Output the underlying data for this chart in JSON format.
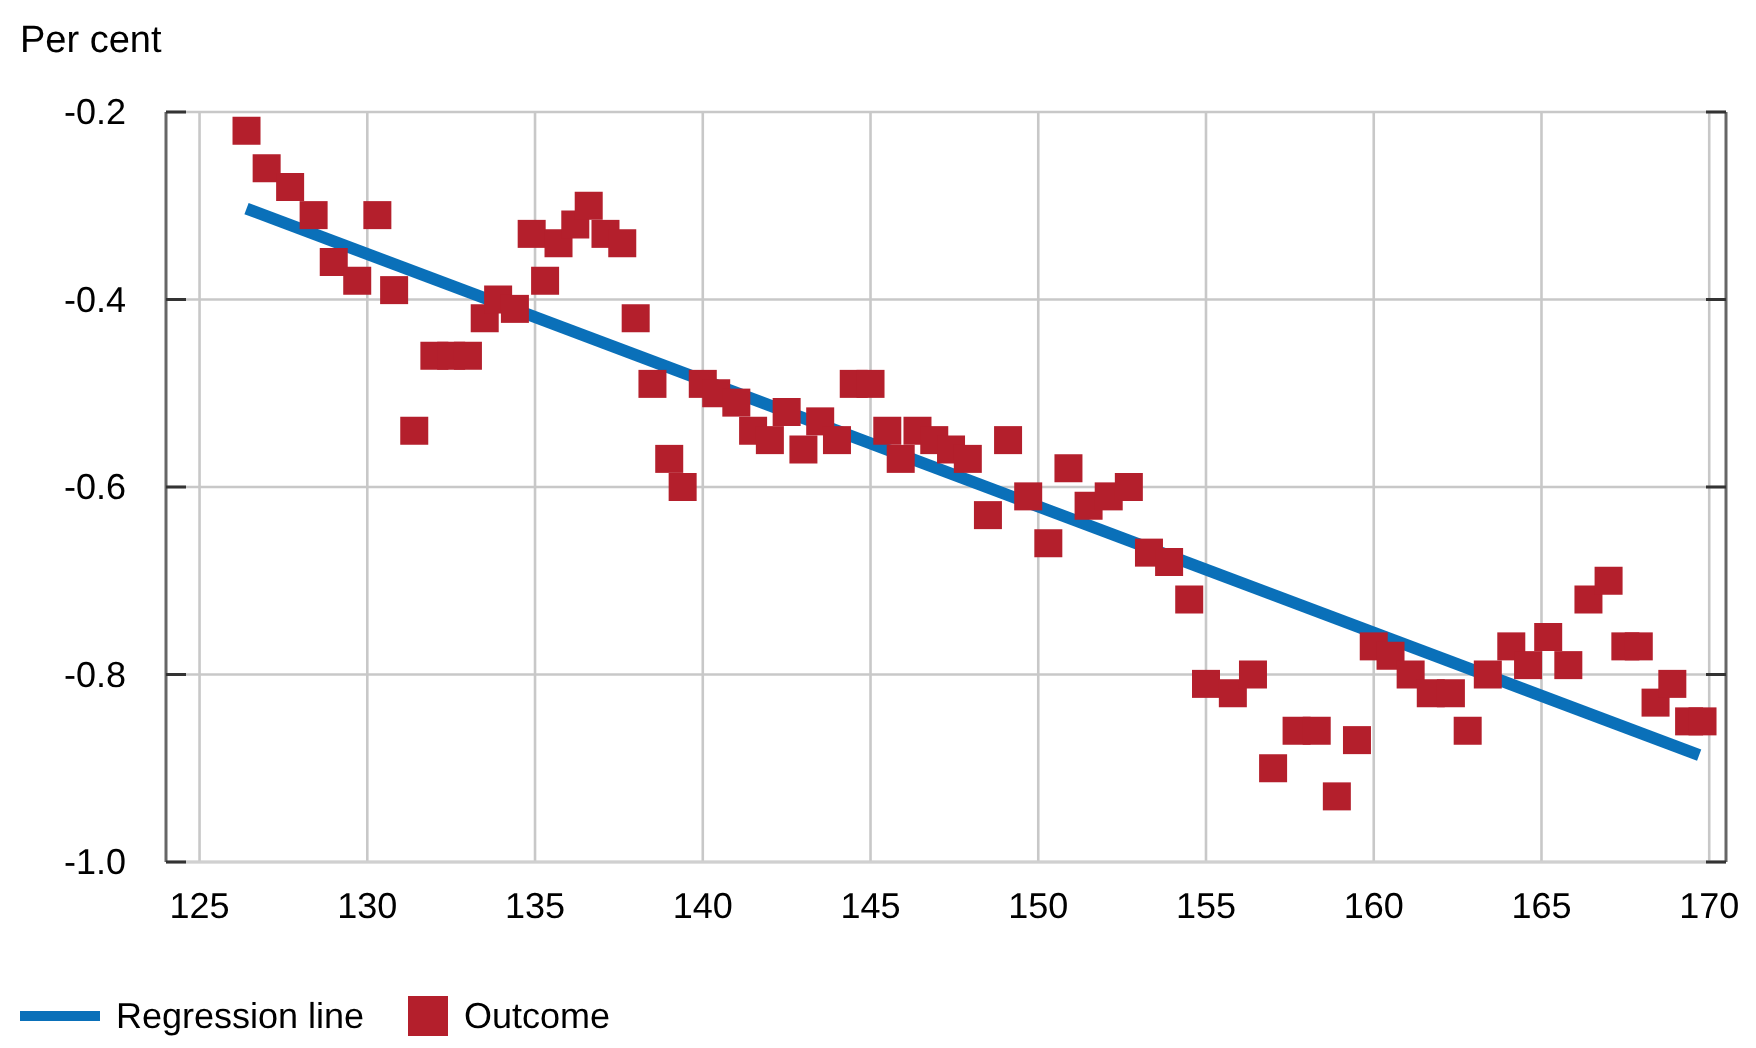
{
  "chart_data": {
    "type": "scatter",
    "ylabel": "Per cent",
    "xlim": [
      124,
      170.5
    ],
    "xticks": [
      125,
      130,
      135,
      140,
      145,
      150,
      155,
      160,
      165,
      170
    ],
    "ylim": [
      -1.0,
      -0.2
    ],
    "yticks": [
      -0.2,
      -0.4,
      -0.6,
      -0.8,
      {
        "value": -1.0,
        "label": "-1.0"
      }
    ],
    "grid": true,
    "legend": "bottom left",
    "series": [
      {
        "name": "Regression line",
        "type": "line",
        "color": "#0a70b9",
        "marker": "none",
        "x": [
          126.4,
          169.7
        ],
        "values": [
          -0.303,
          -0.886
        ]
      },
      {
        "name": "Outcome",
        "color": "#b41f2c",
        "marker": "square",
        "x": [
          126.4,
          127.0,
          127.7,
          128.4,
          129.0,
          129.7,
          130.3,
          130.8,
          131.4,
          132.0,
          132.5,
          133.0,
          133.5,
          133.9,
          134.4,
          134.9,
          135.3,
          135.7,
          136.2,
          136.6,
          137.1,
          137.6,
          138.0,
          138.5,
          139.0,
          139.4,
          140.0,
          140.4,
          141.0,
          141.5,
          142.0,
          142.5,
          143.0,
          143.5,
          144.0,
          144.5,
          145.0,
          145.5,
          145.9,
          146.4,
          146.9,
          147.4,
          147.9,
          148.5,
          149.1,
          149.7,
          150.3,
          150.9,
          151.5,
          152.1,
          152.7,
          153.3,
          153.9,
          154.5,
          155.0,
          155.8,
          156.4,
          157.0,
          157.7,
          158.3,
          158.9,
          159.5,
          160.0,
          160.5,
          161.1,
          161.7,
          162.3,
          162.8,
          163.4,
          164.1,
          164.6,
          165.2,
          165.8,
          166.4,
          167.0,
          167.5,
          167.9,
          168.4,
          168.9,
          169.4,
          169.8
        ],
        "values": [
          -0.22,
          -0.26,
          -0.28,
          -0.31,
          -0.36,
          -0.38,
          -0.31,
          -0.39,
          -0.54,
          -0.46,
          -0.46,
          -0.46,
          -0.42,
          -0.4,
          -0.41,
          -0.33,
          -0.38,
          -0.34,
          -0.32,
          -0.3,
          -0.33,
          -0.34,
          -0.42,
          -0.49,
          -0.57,
          -0.6,
          -0.49,
          -0.5,
          -0.51,
          -0.54,
          -0.55,
          -0.52,
          -0.56,
          -0.53,
          -0.55,
          -0.49,
          -0.49,
          -0.54,
          -0.57,
          -0.54,
          -0.55,
          -0.56,
          -0.57,
          -0.63,
          -0.55,
          -0.61,
          -0.66,
          -0.58,
          -0.62,
          -0.61,
          -0.6,
          -0.67,
          -0.68,
          -0.72,
          -0.81,
          -0.82,
          -0.8,
          -0.9,
          -0.86,
          -0.86,
          -0.93,
          -0.87,
          -0.77,
          -0.78,
          -0.8,
          -0.82,
          -0.82,
          -0.86,
          -0.8,
          -0.77,
          -0.79,
          -0.76,
          -0.79,
          -0.72,
          -0.7,
          -0.77,
          -0.77,
          -0.83,
          -0.81,
          -0.85,
          -0.85
        ]
      }
    ]
  }
}
